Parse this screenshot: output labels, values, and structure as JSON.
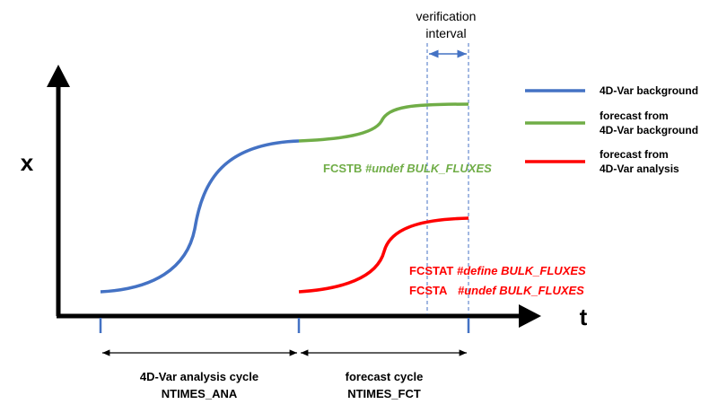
{
  "axes": {
    "y_label": "x",
    "x_label": "t"
  },
  "verification": {
    "lines": [
      "verification",
      "interval"
    ]
  },
  "legend": [
    {
      "lines": [
        "4D-Var background"
      ]
    },
    {
      "lines": [
        "forecast from",
        "4D-Var background"
      ]
    },
    {
      "lines": [
        "forecast from",
        "4D-Var analysis"
      ]
    }
  ],
  "annotations": [
    {
      "name": "FCSTB",
      "flag": "#undef BULK_FLUXES"
    },
    {
      "name": "FCSTAT",
      "flag": "#define BULK_FLUXES"
    },
    {
      "name": "FCSTA",
      "flag": "#undef BULK_FLUXES"
    }
  ],
  "cycles": [
    {
      "name": "4D-Var analysis cycle",
      "variable": "NTIMES_ANA"
    },
    {
      "name": "forecast cycle",
      "variable": "NTIMES_FCT"
    }
  ]
}
